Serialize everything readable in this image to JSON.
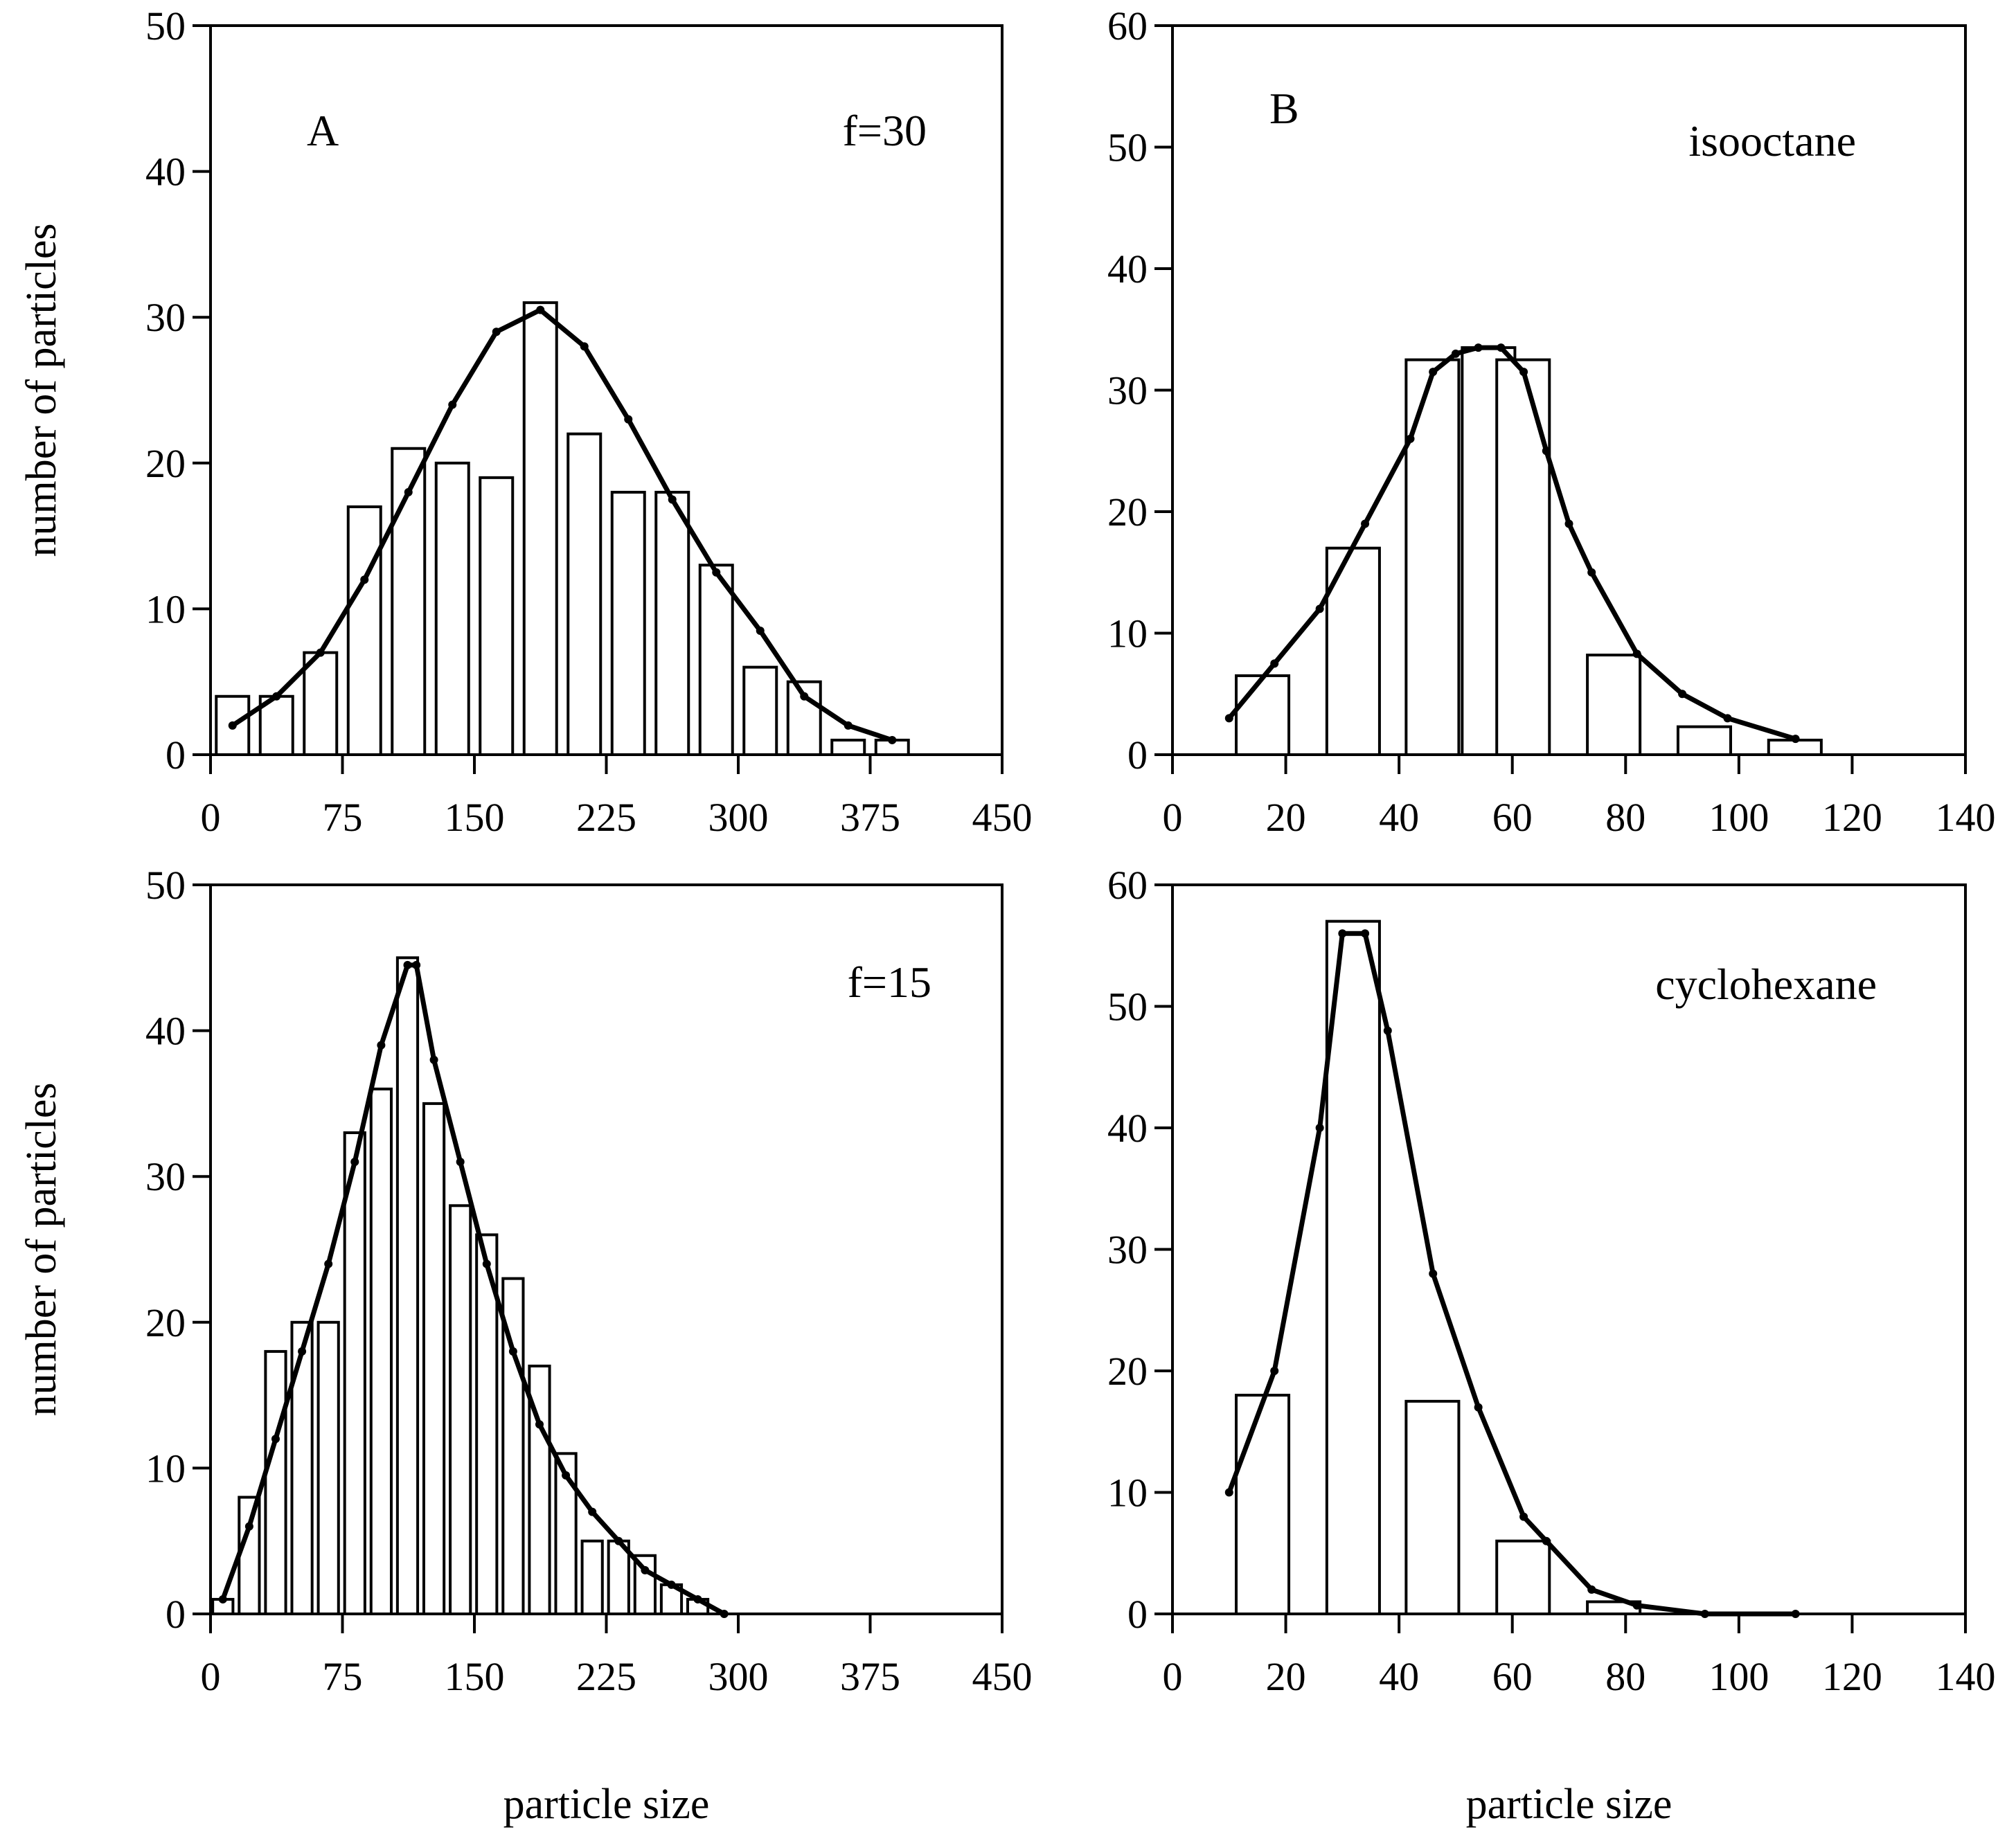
{
  "chart_data": [
    {
      "id": "top-left",
      "type": "bar",
      "panel_label": "A",
      "annotation": "f=30",
      "xlabel": "",
      "ylabel": "number of particles",
      "xlim": [
        0,
        450
      ],
      "ylim": [
        0,
        50
      ],
      "xticks": [
        0,
        75,
        150,
        225,
        300,
        375,
        450
      ],
      "yticks": [
        0,
        10,
        20,
        30,
        40,
        50
      ],
      "bar_width": 18.5,
      "bars": [
        {
          "x": 12.5,
          "value": 4
        },
        {
          "x": 37.5,
          "value": 4
        },
        {
          "x": 62.5,
          "value": 7
        },
        {
          "x": 87.5,
          "value": 17
        },
        {
          "x": 112.5,
          "value": 21
        },
        {
          "x": 137.5,
          "value": 20
        },
        {
          "x": 162.5,
          "value": 19
        },
        {
          "x": 187.5,
          "value": 31
        },
        {
          "x": 212.5,
          "value": 22
        },
        {
          "x": 237.5,
          "value": 18
        },
        {
          "x": 262.5,
          "value": 18
        },
        {
          "x": 287.5,
          "value": 13
        },
        {
          "x": 312.5,
          "value": 6
        },
        {
          "x": 337.5,
          "value": 5
        },
        {
          "x": 362.5,
          "value": 1
        },
        {
          "x": 387.5,
          "value": 1
        }
      ],
      "fit_curve": {
        "x": [
          12.5,
          37.5,
          62.5,
          87.5,
          112.5,
          137.5,
          162.5,
          187.5,
          212.5,
          237.5,
          262.5,
          287.5,
          312.5,
          337.5,
          362.5,
          387.5
        ],
        "y": [
          2,
          4,
          7,
          12,
          18,
          24,
          29,
          30.5,
          28,
          23,
          17.5,
          12.5,
          8.5,
          4,
          2,
          1
        ]
      }
    },
    {
      "id": "top-right",
      "type": "bar",
      "panel_label": "B",
      "annotation": "isooctane",
      "xlabel": "",
      "ylabel": "",
      "xlim": [
        0,
        140
      ],
      "ylim": [
        0,
        60
      ],
      "xticks": [
        0,
        20,
        40,
        60,
        80,
        100,
        120,
        140
      ],
      "yticks": [
        0,
        10,
        20,
        30,
        40,
        50,
        60
      ],
      "bar_width": 9.3,
      "bars": [
        {
          "x": 15.9,
          "value": 6.5
        },
        {
          "x": 31.9,
          "value": 17
        },
        {
          "x": 45.9,
          "value": 32.5
        },
        {
          "x": 55.8,
          "value": 33.5
        },
        {
          "x": 61.9,
          "value": 32.5
        },
        {
          "x": 77.9,
          "value": 8.2
        },
        {
          "x": 93.9,
          "value": 2.3
        },
        {
          "x": 109.9,
          "value": 1.2
        }
      ],
      "fit_curve": {
        "x": [
          10,
          18,
          26,
          34,
          42,
          46,
          50,
          54,
          58,
          62,
          66,
          70,
          74,
          82,
          90,
          98,
          110
        ],
        "y": [
          3,
          7.5,
          12,
          19,
          26,
          31.5,
          33,
          33.5,
          33.5,
          31.5,
          25,
          19,
          15,
          8.3,
          5,
          3,
          1.3
        ]
      }
    },
    {
      "id": "bottom-left",
      "type": "bar",
      "panel_label": "",
      "annotation": "f=15",
      "xlabel": "particle size",
      "ylabel": "number of particles",
      "xlim": [
        0,
        450
      ],
      "ylim": [
        0,
        50
      ],
      "xticks": [
        0,
        75,
        150,
        225,
        300,
        375,
        450
      ],
      "yticks": [
        0,
        10,
        20,
        30,
        40,
        50
      ],
      "bar_width": 11.5,
      "bars": [
        {
          "x": 7,
          "value": 1
        },
        {
          "x": 22,
          "value": 8
        },
        {
          "x": 37,
          "value": 18
        },
        {
          "x": 52,
          "value": 20
        },
        {
          "x": 67,
          "value": 20
        },
        {
          "x": 82,
          "value": 33
        },
        {
          "x": 97,
          "value": 36
        },
        {
          "x": 112,
          "value": 45
        },
        {
          "x": 127,
          "value": 35
        },
        {
          "x": 142,
          "value": 28
        },
        {
          "x": 157,
          "value": 26
        },
        {
          "x": 172,
          "value": 23
        },
        {
          "x": 187,
          "value": 17
        },
        {
          "x": 202,
          "value": 11
        },
        {
          "x": 217,
          "value": 5
        },
        {
          "x": 232,
          "value": 5
        },
        {
          "x": 247,
          "value": 4
        },
        {
          "x": 262,
          "value": 2
        },
        {
          "x": 277,
          "value": 1
        }
      ],
      "fit_curve": {
        "x": [
          7,
          22,
          37,
          52,
          67,
          82,
          97,
          112,
          117,
          127,
          142,
          157,
          172,
          187,
          202,
          217,
          232,
          247,
          262,
          277,
          292
        ],
        "y": [
          1,
          6,
          12,
          18,
          24,
          31,
          39,
          44.5,
          44.5,
          38,
          31,
          24,
          18,
          13,
          9.5,
          7,
          5,
          3,
          2,
          1,
          0
        ]
      }
    },
    {
      "id": "bottom-right",
      "type": "bar",
      "panel_label": "",
      "annotation": "cyclohexane",
      "xlabel": "particle size",
      "ylabel": "",
      "xlim": [
        0,
        140
      ],
      "ylim": [
        0,
        60
      ],
      "xticks": [
        0,
        20,
        40,
        60,
        80,
        100,
        120,
        140
      ],
      "yticks": [
        0,
        10,
        20,
        30,
        40,
        50,
        60
      ],
      "bar_width": 9.3,
      "bars": [
        {
          "x": 15.9,
          "value": 18
        },
        {
          "x": 31.9,
          "value": 57
        },
        {
          "x": 45.9,
          "value": 17.5
        },
        {
          "x": 61.9,
          "value": 6
        },
        {
          "x": 77.9,
          "value": 1
        }
      ],
      "fit_curve": {
        "x": [
          10,
          18,
          26,
          30,
          34,
          38,
          46,
          54,
          62,
          66,
          74,
          82,
          94,
          110
        ],
        "y": [
          10,
          20,
          40,
          56,
          56,
          48,
          28,
          17,
          8,
          6,
          2,
          0.7,
          0,
          0
        ]
      }
    }
  ]
}
